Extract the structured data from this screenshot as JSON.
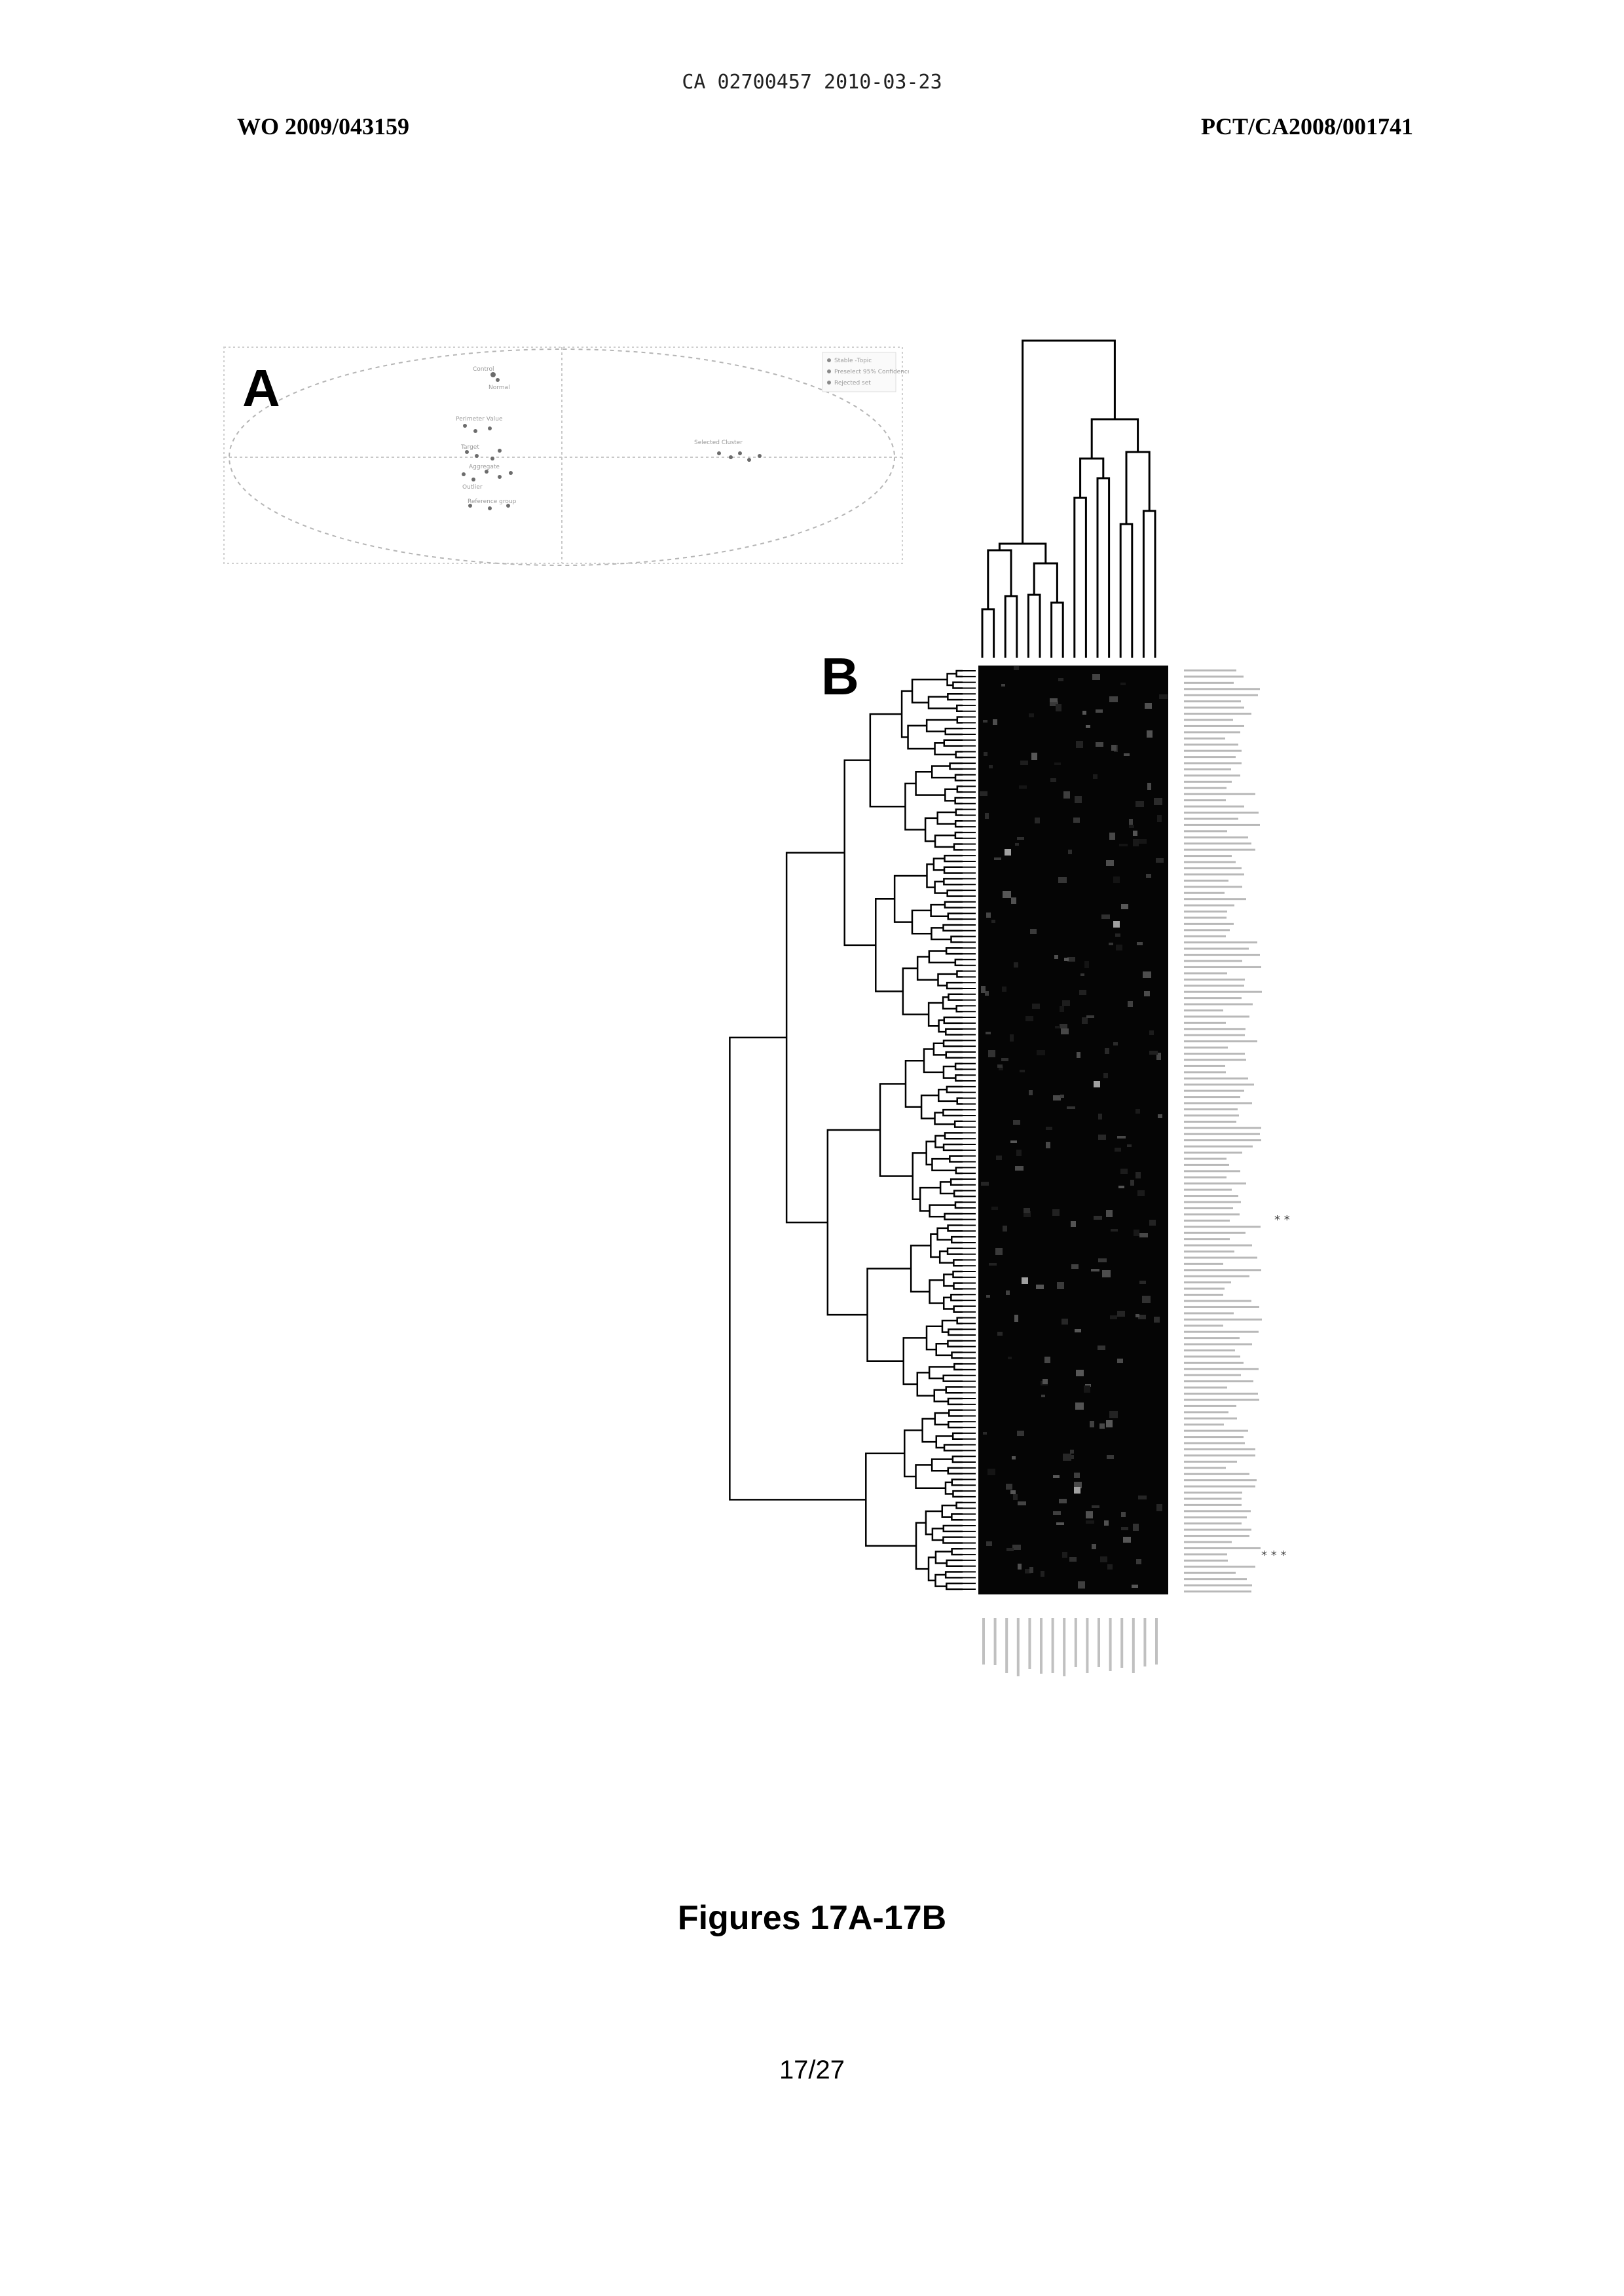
{
  "header": {
    "document_code": "CA 02700457 2010-03-23",
    "publication_number": "WO 2009/043159",
    "application_number": "PCT/CA2008/001741"
  },
  "figure_a": {
    "panel_label": "A",
    "legend": [
      {
        "label": "Stable ‑Topic",
        "color": "#9a9a9a"
      },
      {
        "label": "Preselect 95% Confidence",
        "color": "#9a9a9a"
      },
      {
        "label": "Rejected set",
        "color": "#9a9a9a"
      }
    ],
    "point_labels": [
      "Control",
      "Normal",
      "Perimeter Value",
      "Target",
      "Aggregate",
      "Outlier",
      "Reference group",
      "Selected Cluster"
    ]
  },
  "figure_b": {
    "panel_label": "B",
    "row_marker_a": "* *",
    "row_marker_b": "* * *"
  },
  "caption": "Figures 17A-17B",
  "page_number": "17/27"
}
